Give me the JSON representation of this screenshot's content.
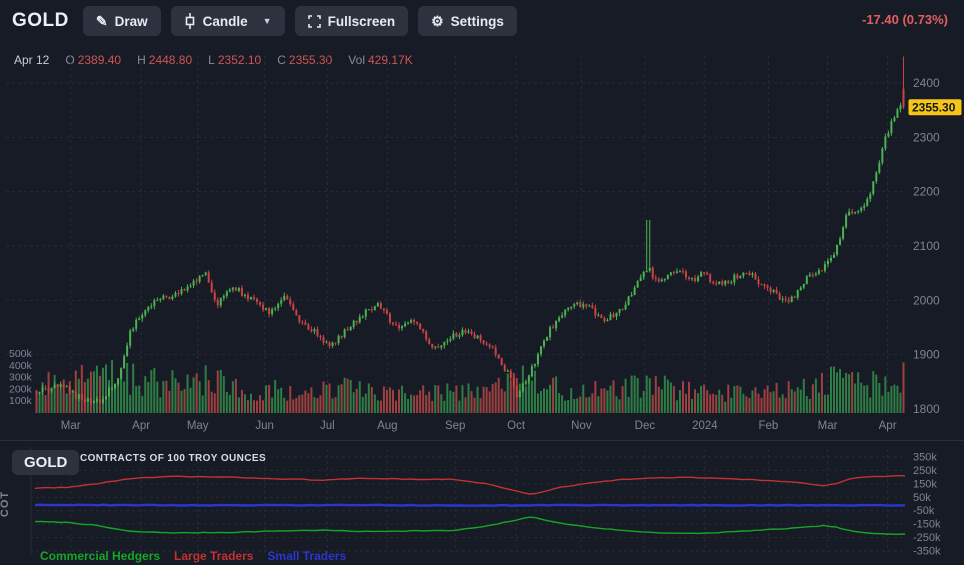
{
  "toolbar": {
    "symbol": "GOLD",
    "draw_label": "Draw",
    "candle_label": "Candle",
    "fullscreen_label": "Fullscreen",
    "settings_label": "Settings",
    "change": "-17.40 (0.73%)"
  },
  "quote_bar": {
    "date": "Apr 12",
    "o_label": "O",
    "o": "2389.40",
    "h_label": "H",
    "h": "2448.80",
    "l_label": "L",
    "l": "2352.10",
    "c_label": "C",
    "c": "2355.30",
    "vol_label": "Vol",
    "vol": "429.17K"
  },
  "colors": {
    "background": "#171b26",
    "grid": "#262b37",
    "axis_text": "#7c8494",
    "candle_up": "#4bb350",
    "candle_down": "#cb4343",
    "volume_up": "#2e7d44",
    "volume_down": "#9e4040",
    "price_tag_bg": "#f5c617",
    "price_tag_text": "#15171c",
    "quote_value": "#d05552",
    "change_text": "#e25f5f"
  },
  "chart_data": [
    {
      "type": "candlestick",
      "title": "GOLD daily with volume",
      "num_bars": 288,
      "y_ticks": [
        1800,
        1900,
        2000,
        2100,
        2200,
        2300,
        2400
      ],
      "volume_ticks": [
        "100k",
        "200k",
        "300k",
        "400k",
        "500k"
      ],
      "x_ticks": [
        {
          "label": "Mar",
          "t": 0.041
        },
        {
          "label": "Apr",
          "t": 0.122
        },
        {
          "label": "May",
          "t": 0.187
        },
        {
          "label": "Jun",
          "t": 0.264
        },
        {
          "label": "Jul",
          "t": 0.336
        },
        {
          "label": "Aug",
          "t": 0.405
        },
        {
          "label": "Sep",
          "t": 0.483
        },
        {
          "label": "Oct",
          "t": 0.553
        },
        {
          "label": "Nov",
          "t": 0.628
        },
        {
          "label": "Dec",
          "t": 0.701
        },
        {
          "label": "2024",
          "t": 0.77
        },
        {
          "label": "Feb",
          "t": 0.843
        },
        {
          "label": "Mar",
          "t": 0.911
        },
        {
          "label": "Apr",
          "t": 0.98
        }
      ],
      "price_path": [
        [
          0.0,
          1832
        ],
        [
          0.029,
          1842
        ],
        [
          0.05,
          1820
        ],
        [
          0.075,
          1812
        ],
        [
          0.095,
          1860
        ],
        [
          0.109,
          1945
        ],
        [
          0.132,
          1995
        ],
        [
          0.161,
          2012
        ],
        [
          0.195,
          2048
        ],
        [
          0.207,
          1990
        ],
        [
          0.226,
          2025
        ],
        [
          0.247,
          2002
        ],
        [
          0.268,
          1978
        ],
        [
          0.285,
          2008
        ],
        [
          0.305,
          1962
        ],
        [
          0.339,
          1916
        ],
        [
          0.374,
          1972
        ],
        [
          0.393,
          1993
        ],
        [
          0.416,
          1947
        ],
        [
          0.437,
          1963
        ],
        [
          0.456,
          1908
        ],
        [
          0.474,
          1928
        ],
        [
          0.491,
          1944
        ],
        [
          0.509,
          1929
        ],
        [
          0.525,
          1913
        ],
        [
          0.543,
          1868
        ],
        [
          0.554,
          1824
        ],
        [
          0.571,
          1872
        ],
        [
          0.589,
          1938
        ],
        [
          0.606,
          1974
        ],
        [
          0.624,
          1994
        ],
        [
          0.64,
          1983
        ],
        [
          0.657,
          1964
        ],
        [
          0.675,
          1987
        ],
        [
          0.697,
          2041
        ],
        [
          0.706,
          2064
        ],
        [
          0.715,
          2031
        ],
        [
          0.728,
          2046
        ],
        [
          0.743,
          2059
        ],
        [
          0.755,
          2036
        ],
        [
          0.768,
          2051
        ],
        [
          0.784,
          2029
        ],
        [
          0.8,
          2037
        ],
        [
          0.817,
          2056
        ],
        [
          0.835,
          2031
        ],
        [
          0.852,
          2011
        ],
        [
          0.869,
          1996
        ],
        [
          0.886,
          2036
        ],
        [
          0.903,
          2052
        ],
        [
          0.921,
          2088
        ],
        [
          0.934,
          2158
        ],
        [
          0.946,
          2166
        ],
        [
          0.957,
          2178
        ],
        [
          0.969,
          2232
        ],
        [
          0.98,
          2302
        ],
        [
          0.991,
          2348
        ],
        [
          1.0,
          2372
        ]
      ],
      "volume_path_k": [
        [
          0.0,
          270
        ],
        [
          0.03,
          230
        ],
        [
          0.06,
          290
        ],
        [
          0.09,
          320
        ],
        [
          0.13,
          260
        ],
        [
          0.17,
          240
        ],
        [
          0.2,
          280
        ],
        [
          0.24,
          200
        ],
        [
          0.28,
          185
        ],
        [
          0.32,
          170
        ],
        [
          0.36,
          205
        ],
        [
          0.4,
          185
        ],
        [
          0.44,
          170
        ],
        [
          0.47,
          165
        ],
        [
          0.5,
          185
        ],
        [
          0.53,
          230
        ],
        [
          0.55,
          300
        ],
        [
          0.58,
          240
        ],
        [
          0.62,
          195
        ],
        [
          0.66,
          175
        ],
        [
          0.7,
          250
        ],
        [
          0.74,
          195
        ],
        [
          0.78,
          170
        ],
        [
          0.82,
          165
        ],
        [
          0.86,
          195
        ],
        [
          0.9,
          240
        ],
        [
          0.93,
          280
        ],
        [
          0.96,
          250
        ],
        [
          1.0,
          300
        ]
      ],
      "spikes": [
        {
          "t": 0.706,
          "high": 2148
        }
      ],
      "last_bar": {
        "open": 2389.4,
        "high": 2448.8,
        "low": 2352.1,
        "close": 2355.3,
        "volume_k": 429.17
      },
      "last_price": 2355.3,
      "last_price_label": "2355.30"
    },
    {
      "type": "line",
      "panel": "COT",
      "symbol_chip": "GOLD",
      "header": "CONTRACTS OF 100 TROY OUNCES",
      "axis_name": "COT",
      "y_ticks": [
        {
          "label": "350k",
          "v": 350
        },
        {
          "label": "250k",
          "v": 250
        },
        {
          "label": "150k",
          "v": 150
        },
        {
          "label": "50k",
          "v": 50
        },
        {
          "label": "-50k",
          "v": -50
        },
        {
          "label": "-150k",
          "v": -150
        },
        {
          "label": "-250k",
          "v": -250
        },
        {
          "label": "-350k",
          "v": -350
        }
      ],
      "series": [
        {
          "name": "Commercial Hedgers",
          "color": "#16a626",
          "width": 1.4,
          "points": [
            [
              0,
              -130
            ],
            [
              0.04,
              -138
            ],
            [
              0.07,
              -160
            ],
            [
              0.11,
              -205
            ],
            [
              0.16,
              -215
            ],
            [
              0.22,
              -212
            ],
            [
              0.28,
              -200
            ],
            [
              0.33,
              -195
            ],
            [
              0.38,
              -205
            ],
            [
              0.43,
              -200
            ],
            [
              0.48,
              -198
            ],
            [
              0.52,
              -165
            ],
            [
              0.545,
              -130
            ],
            [
              0.572,
              -95
            ],
            [
              0.6,
              -140
            ],
            [
              0.64,
              -175
            ],
            [
              0.68,
              -200
            ],
            [
              0.72,
              -215
            ],
            [
              0.75,
              -220
            ],
            [
              0.78,
              -215
            ],
            [
              0.82,
              -200
            ],
            [
              0.86,
              -185
            ],
            [
              0.89,
              -172
            ],
            [
              0.905,
              -160
            ],
            [
              0.92,
              -172
            ],
            [
              0.94,
              -205
            ],
            [
              0.96,
              -218
            ],
            [
              1,
              -225
            ]
          ]
        },
        {
          "name": "Large Traders",
          "color": "#c23232",
          "width": 1.4,
          "points": [
            [
              0,
              118
            ],
            [
              0.04,
              125
            ],
            [
              0.07,
              150
            ],
            [
              0.11,
              190
            ],
            [
              0.16,
              205
            ],
            [
              0.22,
              200
            ],
            [
              0.28,
              188
            ],
            [
              0.33,
              178
            ],
            [
              0.38,
              192
            ],
            [
              0.43,
              185
            ],
            [
              0.48,
              183
            ],
            [
              0.52,
              150
            ],
            [
              0.545,
              108
            ],
            [
              0.572,
              70
            ],
            [
              0.6,
              120
            ],
            [
              0.64,
              160
            ],
            [
              0.68,
              185
            ],
            [
              0.72,
              195
            ],
            [
              0.75,
              198
            ],
            [
              0.78,
              193
            ],
            [
              0.82,
              182
            ],
            [
              0.86,
              168
            ],
            [
              0.89,
              150
            ],
            [
              0.905,
              135
            ],
            [
              0.92,
              150
            ],
            [
              0.94,
              195
            ],
            [
              0.96,
              205
            ],
            [
              1,
              210
            ]
          ]
        },
        {
          "name": "Small Traders",
          "color": "#2b36ce",
          "width": 2.4,
          "points": [
            [
              0,
              -6
            ],
            [
              0.2,
              -10
            ],
            [
              0.4,
              -8
            ],
            [
              0.5,
              -12
            ],
            [
              0.6,
              -8
            ],
            [
              0.8,
              -10
            ],
            [
              1,
              -10
            ]
          ]
        }
      ]
    }
  ]
}
